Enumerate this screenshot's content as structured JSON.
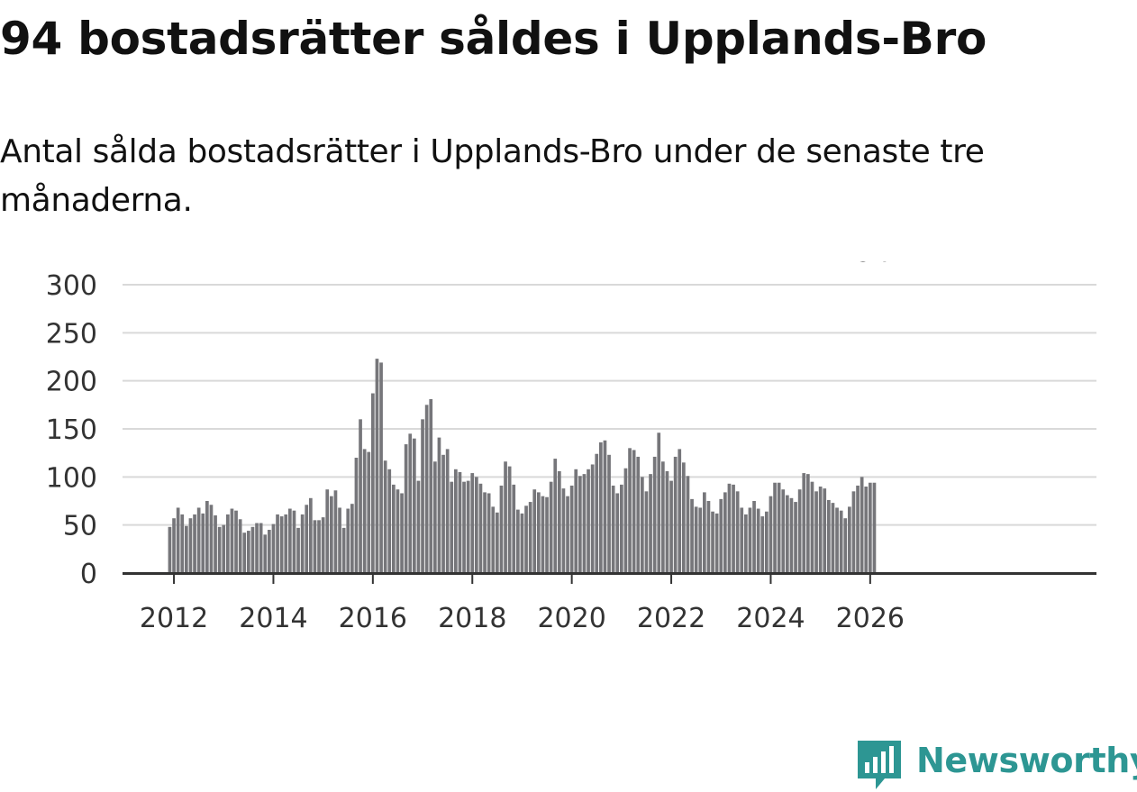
{
  "header": {
    "title": "94 bostadsrätter såldes i Upplands-Bro",
    "subtitle": "Antal sålda bostadsrätter i Upplands-Bro under de senaste tre månaderna."
  },
  "brand": {
    "name": "Newsworthy",
    "logo_icon": "bar-chart-pin-icon",
    "color": "#2d9693"
  },
  "colors": {
    "bar": "#76767a",
    "highlight": "#15968e",
    "grid": "#d9d9d9",
    "axis": "#333333"
  },
  "chart_data": {
    "type": "bar",
    "title": "94 bostadsrätter såldes i Upplands-Bro",
    "subtitle": "Antal sålda bostadsrätter i Upplands-Bro under de senaste tre månaderna.",
    "xlabel": "",
    "ylabel": "",
    "ylim": [
      0,
      300
    ],
    "yticks": [
      "0",
      "50",
      "100",
      "150",
      "200",
      "250",
      "300"
    ],
    "xticks": [
      "2012",
      "2014",
      "2016",
      "2018",
      "2020",
      "2022",
      "2024",
      "2026"
    ],
    "grid": true,
    "start": "2011-12",
    "frequency": "monthly",
    "values": [
      48,
      57,
      68,
      61,
      49,
      57,
      61,
      68,
      62,
      75,
      71,
      60,
      48,
      50,
      61,
      67,
      65,
      56,
      42,
      44,
      48,
      52,
      52,
      40,
      45,
      51,
      61,
      59,
      61,
      67,
      65,
      47,
      61,
      71,
      78,
      55,
      55,
      58,
      87,
      80,
      86,
      68,
      47,
      67,
      72,
      120,
      160,
      129,
      126,
      187,
      223,
      219,
      117,
      108,
      92,
      87,
      83,
      134,
      145,
      140,
      96,
      160,
      175,
      181,
      116,
      141,
      123,
      129,
      95,
      108,
      105,
      95,
      96,
      104,
      100,
      93,
      84,
      83,
      69,
      63,
      91,
      116,
      111,
      92,
      66,
      62,
      70,
      74,
      87,
      84,
      80,
      79,
      95,
      119,
      106,
      88,
      80,
      91,
      108,
      101,
      103,
      108,
      113,
      124,
      136,
      138,
      123,
      91,
      83,
      92,
      109,
      130,
      128,
      121,
      100,
      85,
      103,
      121,
      146,
      116,
      106,
      96,
      121,
      129,
      115,
      101,
      77,
      69,
      68,
      84,
      75,
      64,
      62,
      77,
      84,
      93,
      92,
      85,
      68,
      61,
      68,
      75,
      67,
      59,
      64,
      80,
      94,
      94,
      87,
      81,
      78,
      74,
      87,
      104,
      103,
      95,
      85,
      90,
      88,
      76,
      73,
      68,
      65,
      57,
      69,
      85,
      91,
      100,
      90,
      94,
      94
    ],
    "highlight_index": 171,
    "highlight_label": "94"
  }
}
